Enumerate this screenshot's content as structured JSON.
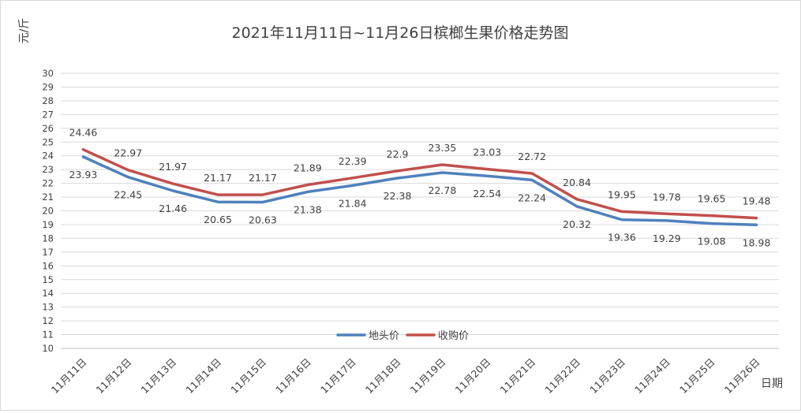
{
  "chart_data": {
    "type": "line",
    "title": "2021年11月11日~11月26日槟榔生果价格走势图",
    "ylabel": "元/斤",
    "xlabel": "日期",
    "ylim": [
      10,
      30
    ],
    "yticks": [
      10,
      11,
      12,
      13,
      14,
      15,
      16,
      17,
      18,
      19,
      20,
      21,
      22,
      23,
      24,
      25,
      26,
      27,
      28,
      29,
      30
    ],
    "grid": true,
    "legend_position": "bottom-center",
    "categories": [
      "11月11日",
      "11月12日",
      "11月13日",
      "11月14日",
      "11月15日",
      "11月16日",
      "11月17日",
      "11月18日",
      "11月19日",
      "11月20日",
      "11月21日",
      "11月22日",
      "11月23日",
      "11月24日",
      "11月25日",
      "11月26日"
    ],
    "series": [
      {
        "name": "地头价",
        "color": "#4f81bd",
        "values": [
          23.93,
          22.45,
          21.46,
          20.65,
          20.63,
          21.38,
          21.84,
          22.38,
          22.78,
          22.54,
          22.24,
          20.32,
          19.36,
          19.29,
          19.08,
          18.98
        ],
        "labels": [
          "23.93",
          "22.45",
          "21.46",
          "20.65",
          "20.63",
          "21.38",
          "21.84",
          "22.38",
          "22.78",
          "22.54",
          "22.24",
          "20.32",
          "19.36",
          "19.29",
          "19.08",
          "18.98"
        ]
      },
      {
        "name": "收购价",
        "color": "#c0504d",
        "values": [
          24.46,
          22.97,
          21.97,
          21.17,
          21.17,
          21.89,
          22.39,
          22.9,
          23.35,
          23.03,
          22.72,
          20.84,
          19.95,
          19.78,
          19.65,
          19.48
        ],
        "labels": [
          "24.46",
          "22.97",
          "21.97",
          "21.17",
          "21.17",
          "21.89",
          "22.39",
          "22.9",
          "23.35",
          "23.03",
          "22.72",
          "20.84",
          "19.95",
          "19.78",
          "19.65",
          "19.48"
        ]
      }
    ]
  }
}
